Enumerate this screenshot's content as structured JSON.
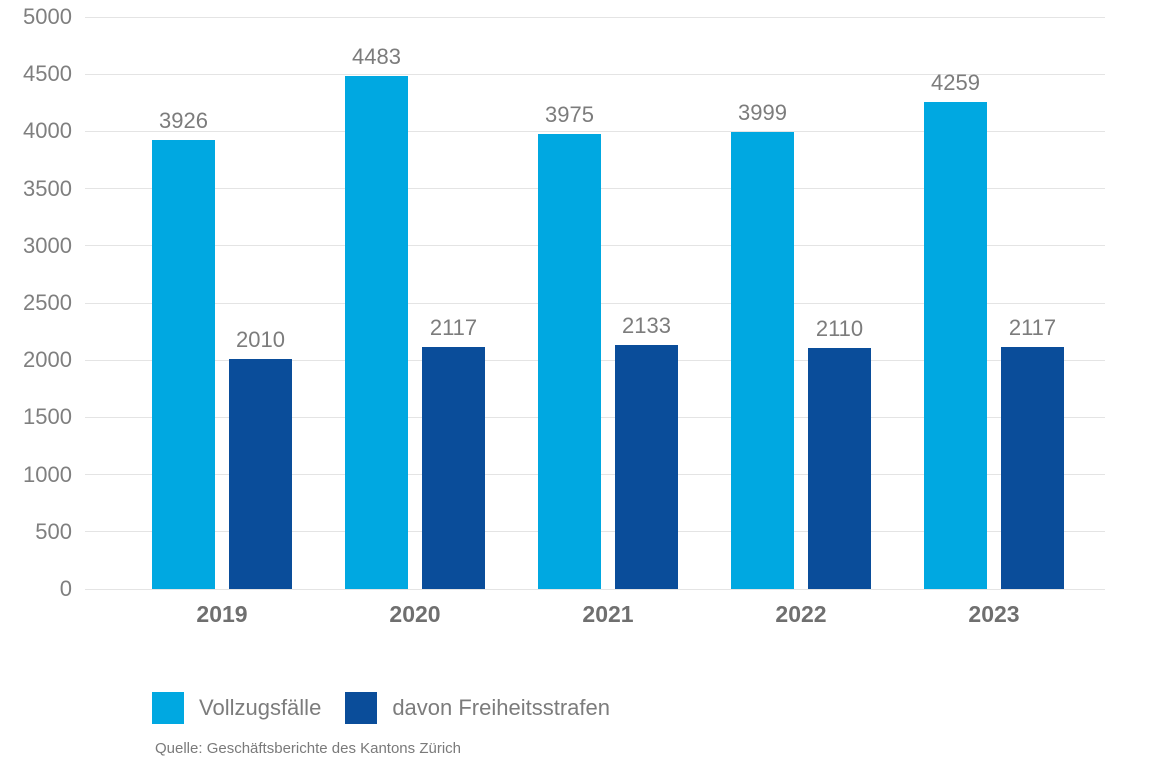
{
  "chart_data": {
    "type": "bar",
    "categories": [
      "2019",
      "2020",
      "2021",
      "2022",
      "2023"
    ],
    "series": [
      {
        "name": "Vollzugsfälle",
        "color": "#00a8e1",
        "values": [
          3926,
          4483,
          3975,
          3999,
          4259
        ]
      },
      {
        "name": "davon Freiheitsstrafen",
        "color": "#0a4d9a",
        "values": [
          2010,
          2117,
          2133,
          2110,
          2117
        ]
      }
    ],
    "title": "",
    "xlabel": "",
    "ylabel": "",
    "ylim": [
      0,
      5000
    ],
    "y_ticks": [
      0,
      500,
      1000,
      1500,
      2000,
      2500,
      3000,
      3500,
      4000,
      4500,
      5000
    ],
    "grid": true,
    "legend_position": "bottom",
    "value_labels": true,
    "source": "Quelle: Geschäftsberichte des Kantons Zürich",
    "colors": {
      "gridline": "#e4e4e4",
      "axis_text": "#7f7f7f",
      "value_label_text": "#7c7c7c",
      "category_label_text": "#6f6f6f",
      "background": "#ffffff"
    }
  }
}
